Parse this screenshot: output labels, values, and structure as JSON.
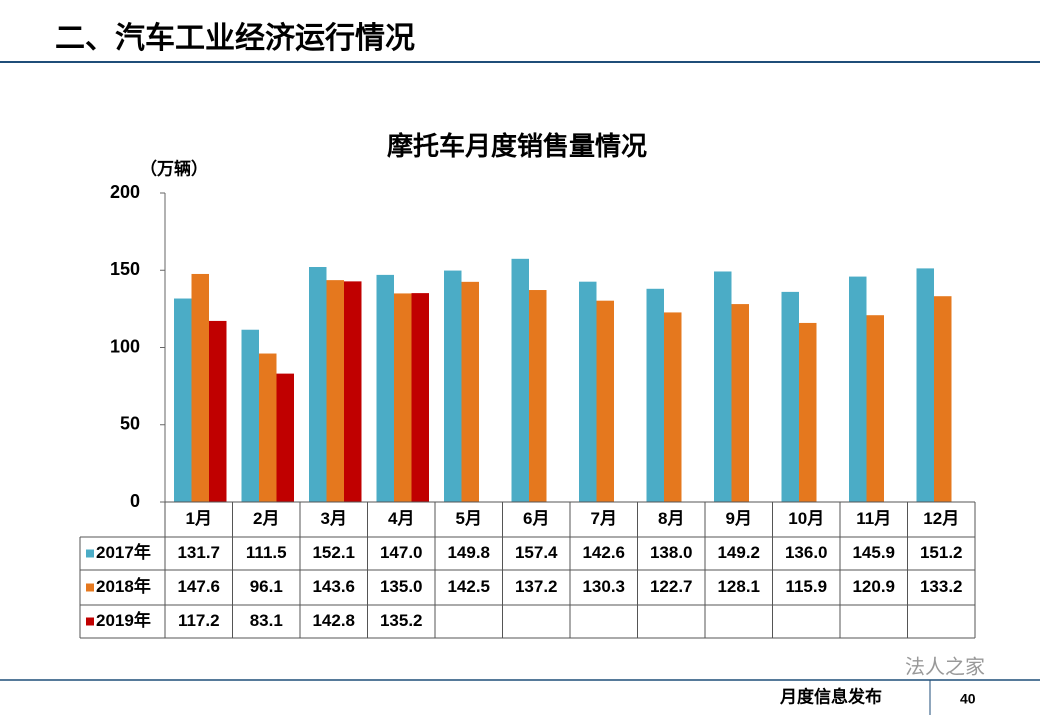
{
  "header": {
    "title": "二、汽车工业经济运行情况"
  },
  "footer": {
    "label": "月度信息发布",
    "page": "40",
    "watermark": "法人之家"
  },
  "chart_data": {
    "type": "bar",
    "title": "摩托车月度销售量情况",
    "y_axis_label": "（万辆）",
    "categories": [
      "1月",
      "2月",
      "3月",
      "4月",
      "5月",
      "6月",
      "7月",
      "8月",
      "9月",
      "10月",
      "11月",
      "12月"
    ],
    "series": [
      {
        "name": "2017年",
        "color": "#4bacc6",
        "values": [
          131.7,
          111.5,
          152.1,
          147.0,
          149.8,
          157.4,
          142.6,
          138.0,
          149.2,
          136.0,
          145.9,
          151.2
        ],
        "value_labels": [
          "131.7",
          "111.5",
          "152.1",
          "147.0",
          "149.8",
          "157.4",
          "142.6",
          "138.0",
          "149.2",
          "136.0",
          "145.9",
          "151.2"
        ]
      },
      {
        "name": "2018年",
        "color": "#e5781e",
        "values": [
          147.6,
          96.1,
          143.6,
          135.0,
          142.5,
          137.2,
          130.3,
          122.7,
          128.1,
          115.9,
          120.9,
          133.2
        ],
        "value_labels": [
          "147.6",
          "96.1",
          "143.6",
          "135.0",
          "142.5",
          "137.2",
          "130.3",
          "122.7",
          "128.1",
          "115.9",
          "120.9",
          "133.2"
        ]
      },
      {
        "name": "2019年",
        "color": "#c00000",
        "values": [
          117.2,
          83.1,
          142.8,
          135.2,
          null,
          null,
          null,
          null,
          null,
          null,
          null,
          null
        ],
        "value_labels": [
          "117.2",
          "83.1",
          "142.8",
          "135.2",
          null,
          null,
          null,
          null,
          null,
          null,
          null,
          null
        ]
      }
    ],
    "ylim": [
      0,
      200
    ],
    "yticks": [
      0,
      50,
      100,
      150,
      200
    ]
  }
}
